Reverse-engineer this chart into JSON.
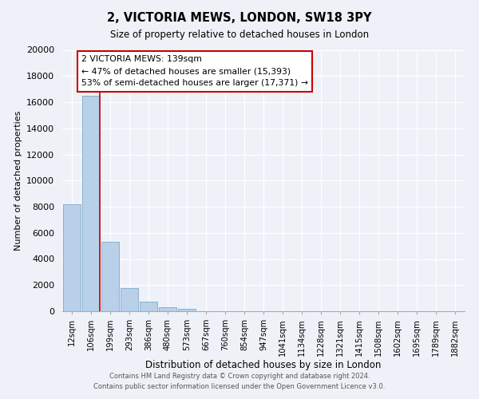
{
  "title1": "2, VICTORIA MEWS, LONDON, SW18 3PY",
  "title2": "Size of property relative to detached houses in London",
  "xlabel": "Distribution of detached houses by size in London",
  "ylabel": "Number of detached properties",
  "bar_labels": [
    "12sqm",
    "106sqm",
    "199sqm",
    "293sqm",
    "386sqm",
    "480sqm",
    "573sqm",
    "667sqm",
    "760sqm",
    "854sqm",
    "947sqm",
    "1041sqm",
    "1134sqm",
    "1228sqm",
    "1321sqm",
    "1415sqm",
    "1508sqm",
    "1602sqm",
    "1695sqm",
    "1789sqm",
    "1882sqm"
  ],
  "bar_values": [
    8200,
    16500,
    5300,
    1800,
    750,
    280,
    200,
    0,
    0,
    0,
    0,
    0,
    0,
    0,
    0,
    0,
    0,
    0,
    0,
    0,
    0
  ],
  "bar_color": "#b8d0e8",
  "bar_edge_color": "#8ab0d0",
  "vline_color": "#cc0000",
  "annotation_title": "2 VICTORIA MEWS: 139sqm",
  "annotation_line1": "← 47% of detached houses are smaller (15,393)",
  "annotation_line2": "53% of semi-detached houses are larger (17,371) →",
  "annotation_box_color": "#ffffff",
  "annotation_box_edge": "#cc0000",
  "ylim": [
    0,
    20000
  ],
  "yticks": [
    0,
    2000,
    4000,
    6000,
    8000,
    10000,
    12000,
    14000,
    16000,
    18000,
    20000
  ],
  "footer1": "Contains HM Land Registry data © Crown copyright and database right 2024.",
  "footer2": "Contains public sector information licensed under the Open Government Licence v3.0.",
  "bg_color": "#eef2f8",
  "grid_color": "#ffffff",
  "title1_fontsize": 10.5,
  "title2_fontsize": 8.5
}
